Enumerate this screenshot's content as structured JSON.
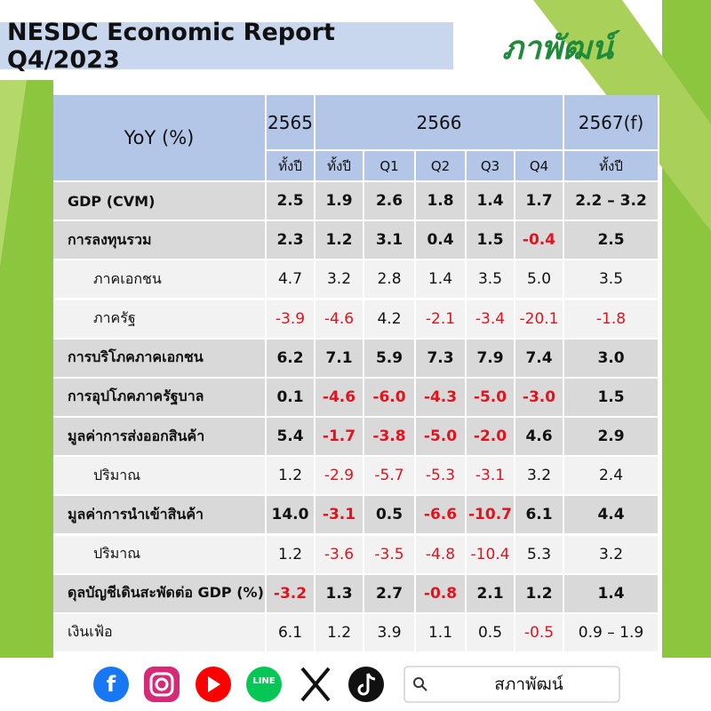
{
  "header": {
    "title": "NESDC Economic Report Q4/2023",
    "logo": "ภาพัฒน์"
  },
  "table": {
    "corner": "YoY (%)",
    "years": [
      "2565",
      "2566",
      "2567(f)"
    ],
    "subheaders": [
      "ทั้งปี",
      "ทั้งปี",
      "Q1",
      "Q2",
      "Q3",
      "Q4",
      "ทั้งปี"
    ],
    "rows": [
      {
        "label": "GDP (CVM)",
        "bold": true,
        "values": [
          "2.5",
          "1.9",
          "2.6",
          "1.8",
          "1.4",
          "1.7",
          "2.2 – 3.2"
        ],
        "subrows": []
      },
      {
        "label": "การลงทุนรวม",
        "bold": true,
        "values": [
          "2.3",
          "1.2",
          "3.1",
          "0.4",
          "1.5",
          "-0.4",
          "2.5"
        ],
        "subrows": [
          {
            "label": "ภาคเอกชน",
            "values": [
              "4.7",
              "3.2",
              "2.8",
              "1.4",
              "3.5",
              "5.0",
              "3.5"
            ]
          },
          {
            "label": "ภาครัฐ",
            "values": [
              "-3.9",
              "-4.6",
              "4.2",
              "-2.1",
              "-3.4",
              "-20.1",
              "-1.8"
            ]
          }
        ]
      },
      {
        "label": "การบริโภคภาคเอกชน",
        "bold": true,
        "values": [
          "6.2",
          "7.1",
          "5.9",
          "7.3",
          "7.9",
          "7.4",
          "3.0"
        ],
        "subrows": []
      },
      {
        "label": "การอุปโภคภาครัฐบาล",
        "bold": true,
        "values": [
          "0.1",
          "-4.6",
          "-6.0",
          "-4.3",
          "-5.0",
          "-3.0",
          "1.5"
        ],
        "subrows": []
      },
      {
        "label": "มูลค่าการส่งออกสินค้า",
        "bold": true,
        "values": [
          "5.4",
          "-1.7",
          "-3.8",
          "-5.0",
          "-2.0",
          "4.6",
          "2.9"
        ],
        "subrows": [
          {
            "label": "ปริมาณ",
            "values": [
              "1.2",
              "-2.9",
              "-5.7",
              "-5.3",
              "-3.1",
              "3.2",
              "2.4"
            ]
          }
        ]
      },
      {
        "label": "มูลค่าการนำเข้าสินค้า",
        "bold": true,
        "values": [
          "14.0",
          "-3.1",
          "0.5",
          "-6.6",
          "-10.7",
          "6.1",
          "4.4"
        ],
        "subrows": [
          {
            "label": "ปริมาณ",
            "values": [
              "1.2",
              "-3.6",
              "-3.5",
              "-4.8",
              "-10.4",
              "5.3",
              "3.2"
            ]
          }
        ]
      },
      {
        "label": "ดุลบัญชีเดินสะพัดต่อ GDP (%)",
        "bold": true,
        "values": [
          "-3.2",
          "1.3",
          "2.7",
          "-0.8",
          "2.1",
          "1.2",
          "1.4"
        ],
        "subrows": []
      },
      {
        "label": "เงินเฟ้อ",
        "bold": false,
        "values": [
          "6.1",
          "1.2",
          "3.9",
          "1.1",
          "0.5",
          "-0.5",
          "0.9 – 1.9"
        ],
        "subrows": []
      }
    ]
  },
  "footer": {
    "line_icon": "LINE",
    "search_text": "สภาพัฒน์"
  }
}
